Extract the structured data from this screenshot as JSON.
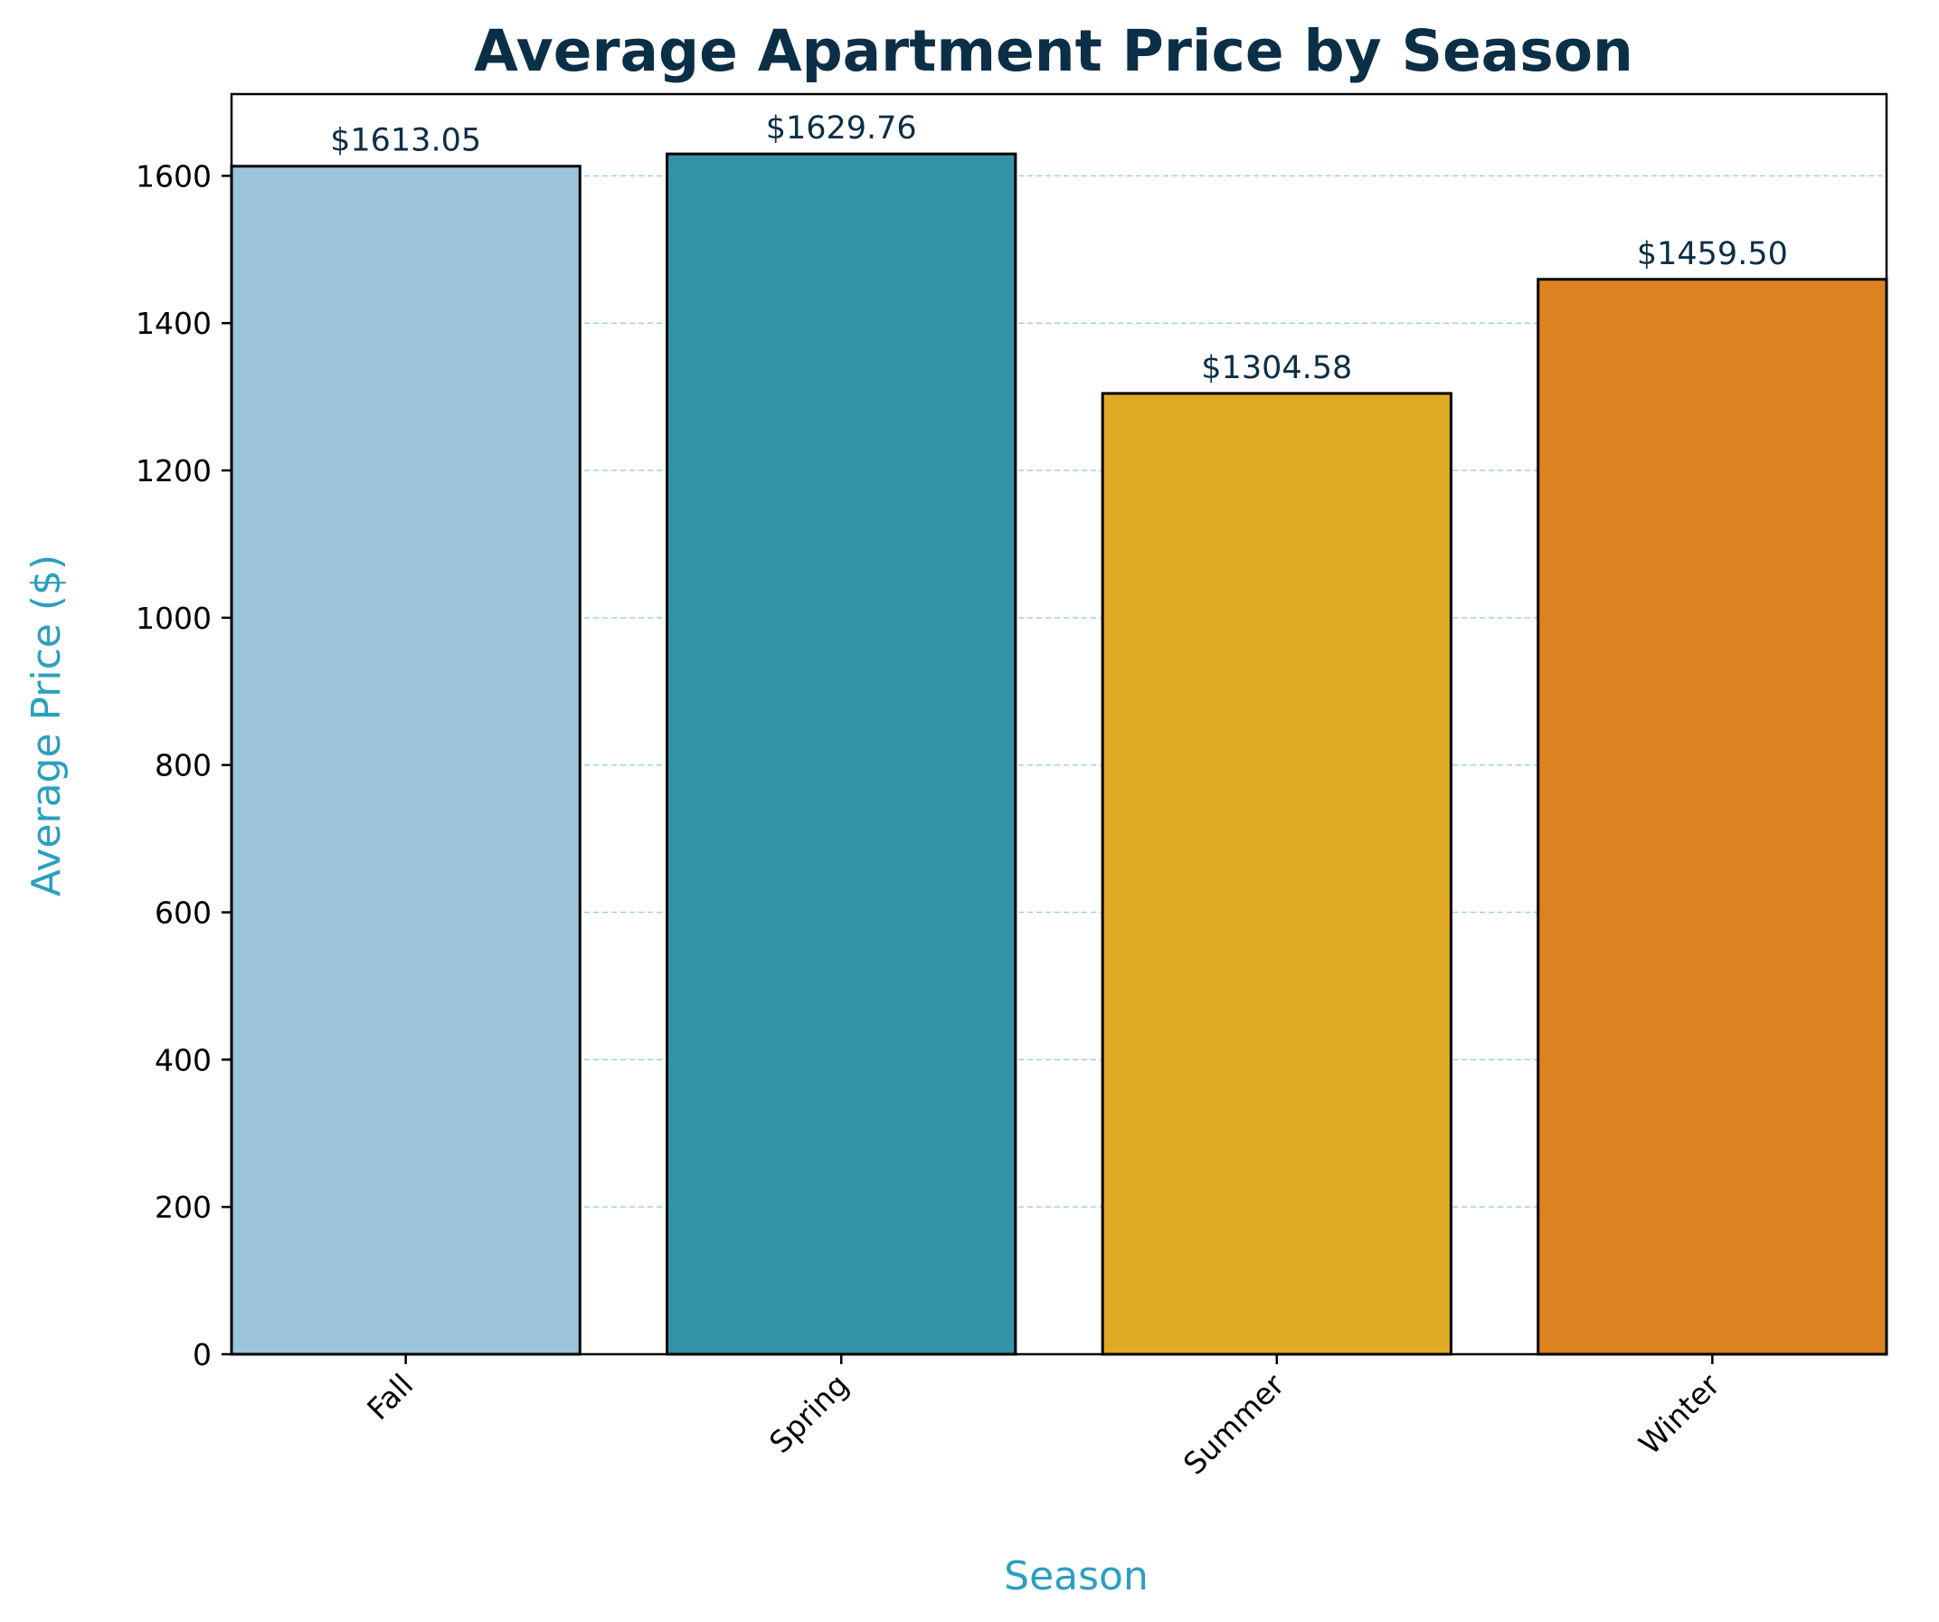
{
  "chart_data": {
    "type": "bar",
    "title": "Average Apartment Price by Season",
    "xlabel": "Season",
    "ylabel": "Average Price ($)",
    "categories": [
      "Fall",
      "Spring",
      "Summer",
      "Winter"
    ],
    "values": [
      1613.05,
      1629.76,
      1304.58,
      1459.5
    ],
    "value_labels": [
      "$1613.05",
      "$1629.76",
      "$1304.58",
      "$1459.50"
    ],
    "ylim": [
      0,
      1711
    ],
    "yticks": [
      0,
      200,
      400,
      600,
      800,
      1000,
      1200,
      1400,
      1600
    ],
    "grid": true,
    "legend": "none",
    "colors": {
      "bars": [
        "#9bc5da",
        "#3493a9",
        "#e0aa24",
        "#dc8220"
      ],
      "title": "#0b2f46",
      "axis_label": "#2b9fbf",
      "data_label": "#0b2f46",
      "grid": "#9fd0e3",
      "bar_edge": "#000000"
    }
  }
}
